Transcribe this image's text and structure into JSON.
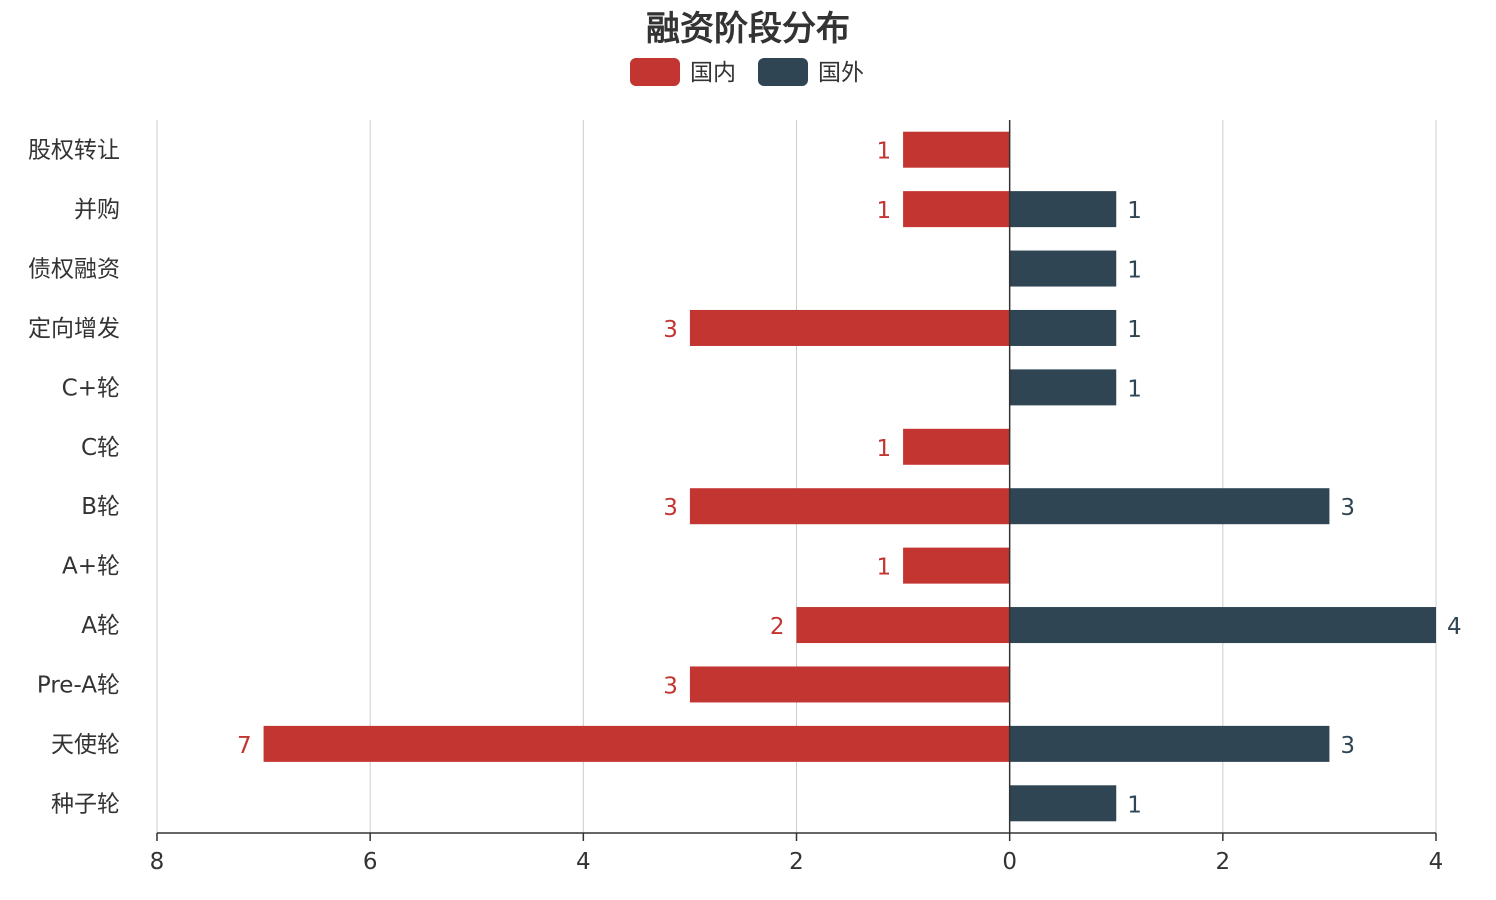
{
  "chart_data": {
    "type": "bar",
    "orientation": "horizontal-diverging",
    "title": "融资阶段分布",
    "legend_position": "top-center",
    "grid": true,
    "categories": [
      "股权转让",
      "并购",
      "债权融资",
      "定向增发",
      "C+轮",
      "C轮",
      "B轮",
      "A+轮",
      "A轮",
      "Pre-A轮",
      "天使轮",
      "种子轮"
    ],
    "series": [
      {
        "name": "国内",
        "color": "#c23531",
        "direction": "left",
        "values": [
          1,
          1,
          null,
          3,
          null,
          1,
          3,
          1,
          2,
          3,
          7,
          null
        ]
      },
      {
        "name": "国外",
        "color": "#2f4554",
        "direction": "right",
        "values": [
          null,
          1,
          1,
          1,
          1,
          null,
          3,
          null,
          4,
          null,
          3,
          1
        ]
      }
    ],
    "xlim": [
      -8,
      4
    ],
    "ticks": [
      -8,
      -6,
      -4,
      -2,
      0,
      2,
      4
    ],
    "tick_labels": [
      "8",
      "6",
      "4",
      "2",
      "0",
      "2",
      "4"
    ]
  }
}
